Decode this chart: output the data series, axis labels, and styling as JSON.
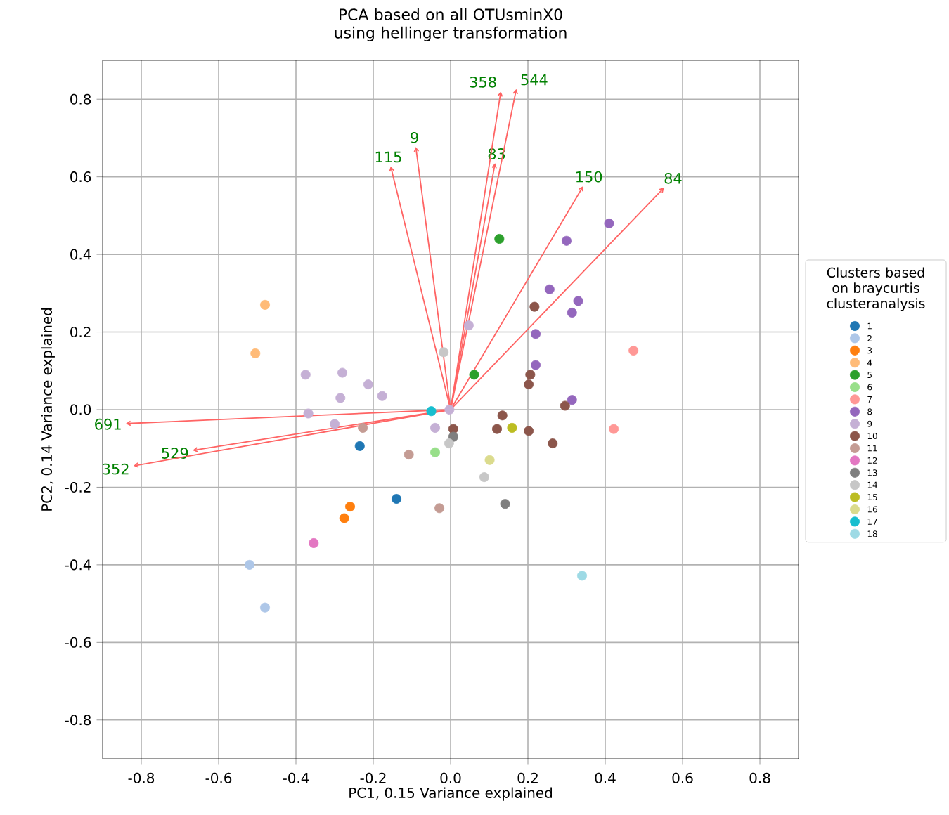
{
  "chart_data": {
    "type": "scatter",
    "title": "PCA based on all OTUsminX0 using hellinger transformation",
    "xlabel": "PC1, 0.15 Variance explained",
    "ylabel": "PC2, 0.14 Variance explained",
    "legend_title": "Clusters based on braycurtis clusteranalysis",
    "xlim": [
      -0.9,
      0.9
    ],
    "ylim": [
      -0.9,
      0.9
    ],
    "xticks": [
      -0.8,
      -0.6,
      -0.4,
      -0.2,
      {
        "value": 0,
        "label": "0.0"
      },
      0.2,
      0.4,
      0.6,
      0.8
    ],
    "yticks": [
      -0.8,
      -0.6,
      -0.4,
      -0.2,
      {
        "value": 0,
        "label": "0.0"
      },
      0.2,
      0.4,
      0.6,
      0.8
    ],
    "grid": true,
    "legend": "right",
    "marker": "circle",
    "series": [
      {
        "name": "1",
        "color": "#1f77b4",
        "x": [
          -0.235,
          -0.14
        ],
        "values": [
          -0.094,
          -0.23
        ]
      },
      {
        "name": "2",
        "color": "#aec7e8",
        "x": [
          -0.52,
          -0.48
        ],
        "values": [
          -0.4,
          -0.51
        ]
      },
      {
        "name": "3",
        "color": "#ff7f0e",
        "x": [
          -0.26,
          -0.275
        ],
        "values": [
          -0.25,
          -0.28
        ]
      },
      {
        "name": "4",
        "color": "#ffbb78",
        "x": [
          -0.48,
          -0.505
        ],
        "values": [
          0.27,
          0.145
        ]
      },
      {
        "name": "5",
        "color": "#2ca02c",
        "x": [
          0.126,
          0.061
        ],
        "values": [
          0.44,
          0.09
        ]
      },
      {
        "name": "6",
        "color": "#98df8a",
        "x": [
          -0.04
        ],
        "values": [
          -0.11
        ]
      },
      {
        "name": "7",
        "color": "#ff9896",
        "x": [
          0.473,
          0.422
        ],
        "values": [
          0.152,
          -0.05
        ]
      },
      {
        "name": "8",
        "color": "#9467bd",
        "x": [
          0.41,
          0.3,
          0.256,
          0.33,
          0.314,
          0.22,
          0.22,
          0.314
        ],
        "values": [
          0.48,
          0.435,
          0.31,
          0.28,
          0.25,
          0.195,
          0.115,
          0.025
        ]
      },
      {
        "name": "9",
        "color": "#c5b0d5",
        "x": [
          -0.375,
          -0.28,
          -0.285,
          -0.213,
          -0.177,
          -0.368,
          -0.3,
          0.047,
          -0.04,
          -0.003
        ],
        "values": [
          0.09,
          0.095,
          0.03,
          0.065,
          0.035,
          -0.01,
          -0.037,
          0.217,
          -0.047,
          0.0
        ]
      },
      {
        "name": "10",
        "color": "#8c564b",
        "x": [
          0.217,
          0.206,
          0.202,
          0.296,
          0.134,
          0.12,
          0.202,
          0.264,
          0.007
        ],
        "values": [
          0.265,
          0.09,
          0.065,
          0.01,
          -0.015,
          -0.05,
          -0.055,
          -0.087,
          -0.05
        ]
      },
      {
        "name": "11",
        "color": "#c49c94",
        "x": [
          -0.227,
          -0.108,
          -0.029
        ],
        "values": [
          -0.047,
          -0.116,
          -0.254
        ]
      },
      {
        "name": "12",
        "color": "#e377c2",
        "x": [
          -0.354
        ],
        "values": [
          -0.344
        ]
      },
      {
        "name": "13",
        "color": "#7f7f7f",
        "x": [
          0.007,
          0.141
        ],
        "values": [
          -0.07,
          -0.243
        ]
      },
      {
        "name": "14",
        "color": "#c7c7c7",
        "x": [
          -0.018,
          -0.004,
          0.087
        ],
        "values": [
          0.148,
          -0.087,
          -0.174
        ]
      },
      {
        "name": "15",
        "color": "#bcbd22",
        "x": [
          0.159
        ],
        "values": [
          -0.047
        ]
      },
      {
        "name": "16",
        "color": "#dbdb8d",
        "x": [
          0.101
        ],
        "values": [
          -0.13
        ]
      },
      {
        "name": "17",
        "color": "#17becf",
        "x": [
          -0.05
        ],
        "values": [
          -0.004
        ]
      },
      {
        "name": "18",
        "color": "#9edae5",
        "x": [
          0.34
        ],
        "values": [
          -0.428
        ]
      },
      {
        "type": "line",
        "marker": "none",
        "name": "115",
        "color": "#ff6464",
        "x": [
          0,
          -0.155
        ],
        "values": [
          0,
          0.627
        ]
      },
      {
        "type": "line",
        "marker": "none",
        "name": "9",
        "color": "#ff6464",
        "x": [
          0,
          -0.09
        ],
        "values": [
          0,
          0.677
        ]
      },
      {
        "type": "line",
        "marker": "none",
        "name": "83",
        "color": "#ff6464",
        "x": [
          0,
          0.115
        ],
        "values": [
          0,
          0.635
        ]
      },
      {
        "type": "line",
        "marker": "none",
        "name": "358",
        "color": "#ff6464",
        "x": [
          0,
          0.13
        ],
        "values": [
          0,
          0.82
        ]
      },
      {
        "type": "line",
        "marker": "none",
        "name": "544",
        "color": "#ff6464",
        "x": [
          0,
          0.17
        ],
        "values": [
          0,
          0.826
        ]
      },
      {
        "type": "line",
        "marker": "none",
        "name": "150",
        "color": "#ff6464",
        "x": [
          0,
          0.343
        ],
        "values": [
          0,
          0.576
        ]
      },
      {
        "type": "line",
        "marker": "none",
        "name": "84",
        "color": "#ff6464",
        "x": [
          0,
          0.552
        ],
        "values": [
          0,
          0.572
        ]
      },
      {
        "type": "line",
        "marker": "none",
        "name": "691",
        "color": "#ff6464",
        "x": [
          0,
          -0.84
        ],
        "values": [
          0,
          -0.036
        ]
      },
      {
        "type": "line",
        "marker": "none",
        "name": "529",
        "color": "#ff6464",
        "x": [
          0,
          -0.667
        ],
        "values": [
          0,
          -0.105
        ]
      },
      {
        "type": "line",
        "marker": "none",
        "name": "352",
        "color": "#ff6464",
        "x": [
          0,
          -0.82
        ],
        "values": [
          0,
          -0.145
        ]
      }
    ]
  }
}
